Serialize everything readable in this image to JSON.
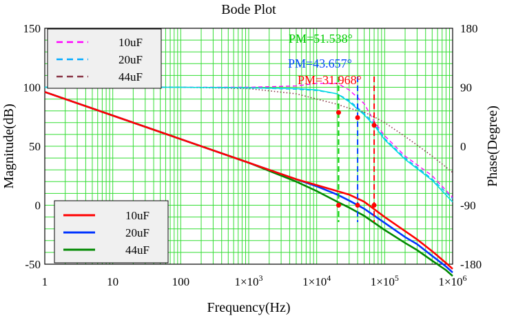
{
  "chart_data": {
    "type": "line",
    "title": "Bode Plot",
    "xlabel": "Frequency(Hz)",
    "ylabel_left": "Magnitude(dB)",
    "ylabel_right": "Phase(Degree)",
    "x_scale": "log",
    "xlim": [
      1,
      1000000
    ],
    "ylim_left": [
      -50,
      150
    ],
    "ylim_right": [
      -180,
      180
    ],
    "grid": true,
    "x_ticks": [
      {
        "value": 1,
        "label": "1",
        "sup": ""
      },
      {
        "value": 10,
        "label": "10",
        "sup": ""
      },
      {
        "value": 100,
        "label": "100",
        "sup": ""
      },
      {
        "value": 1000,
        "label": "1×10",
        "sup": "3"
      },
      {
        "value": 10000,
        "label": "1×10",
        "sup": "4"
      },
      {
        "value": 100000,
        "label": "1×10",
        "sup": "5"
      },
      {
        "value": 1000000,
        "label": "1×10",
        "sup": "6"
      }
    ],
    "y_ticks_left": [
      {
        "value": 150,
        "label": "150"
      },
      {
        "value": 100,
        "label": "100"
      },
      {
        "value": 50,
        "label": "50"
      },
      {
        "value": 0,
        "label": "0"
      },
      {
        "value": -50,
        "label": "-50"
      }
    ],
    "y_ticks_right": [
      {
        "value": 180,
        "label": "180"
      },
      {
        "value": 90,
        "label": "90"
      },
      {
        "value": 0,
        "label": "0"
      },
      {
        "value": -90,
        "label": "-90"
      },
      {
        "value": -180,
        "label": "-180"
      }
    ],
    "magnitude_series": [
      {
        "name": "10uF",
        "color": "#ff0000",
        "x": [
          1,
          10,
          100,
          1000,
          5000,
          10000,
          20000,
          30000,
          50000,
          100000,
          200000,
          300000,
          500000,
          800000,
          1000000
        ],
        "y": [
          96,
          76,
          56,
          36,
          22,
          17,
          12,
          9,
          3,
          -10,
          -22,
          -29,
          -39,
          -49,
          -54
        ]
      },
      {
        "name": "20uF",
        "color": "#0033ff",
        "x": [
          1,
          10,
          100,
          1000,
          5000,
          10000,
          20000,
          30000,
          50000,
          100000,
          200000,
          300000,
          500000,
          800000,
          1000000
        ],
        "y": [
          96,
          76,
          56,
          36,
          22,
          16,
          9,
          4,
          -3,
          -15,
          -27,
          -33,
          -43,
          -52,
          -57
        ]
      },
      {
        "name": "44uF",
        "color": "#008800",
        "x": [
          1,
          10,
          100,
          1000,
          5000,
          10000,
          20000,
          30000,
          50000,
          100000,
          200000,
          300000,
          500000,
          800000,
          1000000
        ],
        "y": [
          96,
          76,
          56,
          36,
          20,
          12,
          3,
          -2,
          -9,
          -21,
          -32,
          -38,
          -47,
          -55,
          -60
        ]
      }
    ],
    "phase_series": [
      {
        "name": "10uF",
        "color": "#ff00ff",
        "x": [
          1,
          10,
          100,
          1000,
          5000,
          10000,
          20000,
          30000,
          50000,
          70000,
          100000,
          200000,
          500000,
          1000000
        ],
        "y": [
          90,
          90,
          90,
          90,
          92,
          96,
          96,
          86,
          65,
          38,
          16,
          -15,
          -45,
          -78
        ]
      },
      {
        "name": "20uF",
        "color": "#00aaff",
        "x": [
          1,
          10,
          100,
          1000,
          5000,
          10000,
          20000,
          30000,
          50000,
          70000,
          100000,
          200000,
          500000,
          1000000
        ],
        "y": [
          90,
          90,
          90,
          89,
          87,
          85,
          80,
          70,
          50,
          35,
          12,
          -18,
          -50,
          -80
        ]
      },
      {
        "name": "44uF",
        "color": "#883344",
        "x": [
          1,
          10,
          100,
          1000,
          5000,
          10000,
          20000,
          30000,
          50000,
          70000,
          100000,
          200000,
          500000,
          1000000
        ],
        "y": [
          90,
          90,
          90,
          88,
          80,
          72,
          64,
          58,
          52,
          45,
          36,
          15,
          -15,
          -40
        ]
      }
    ],
    "phase_trace_cyan": {
      "x": [
        1,
        10,
        100,
        1000,
        5000,
        10000,
        20000,
        30000,
        50000,
        70000,
        100000,
        200000,
        500000,
        1000000
      ],
      "y": [
        90,
        90,
        90,
        89,
        88,
        86,
        80,
        68,
        48,
        32,
        10,
        -20,
        -52,
        -85
      ]
    },
    "phase_margins": [
      {
        "label": "PM=51.538°",
        "freq": 21000,
        "phase": 51.538,
        "color": "#00cc00"
      },
      {
        "label": "PM=43.657°",
        "freq": 40000,
        "phase": 43.657,
        "color": "#0044ff"
      },
      {
        "label": "PM=31.968°",
        "freq": 70000,
        "phase": 31.968,
        "color": "#ff0000"
      }
    ],
    "crossover_markers": [
      {
        "freq": 21000,
        "mag": 0
      },
      {
        "freq": 40000,
        "mag": 0
      },
      {
        "freq": 70000,
        "mag": 0
      }
    ],
    "legend_phase": {
      "placement": "top-left",
      "items": [
        {
          "label": "10uF",
          "color": "#ff00ff"
        },
        {
          "label": "20uF",
          "color": "#00aaff"
        },
        {
          "label": "44uF",
          "color": "#883344"
        }
      ]
    },
    "legend_mag": {
      "placement": "bottom-left",
      "items": [
        {
          "label": "10uF",
          "color": "#ff0000"
        },
        {
          "label": "20uF",
          "color": "#0033ff"
        },
        {
          "label": "44uF",
          "color": "#008800"
        }
      ]
    }
  }
}
